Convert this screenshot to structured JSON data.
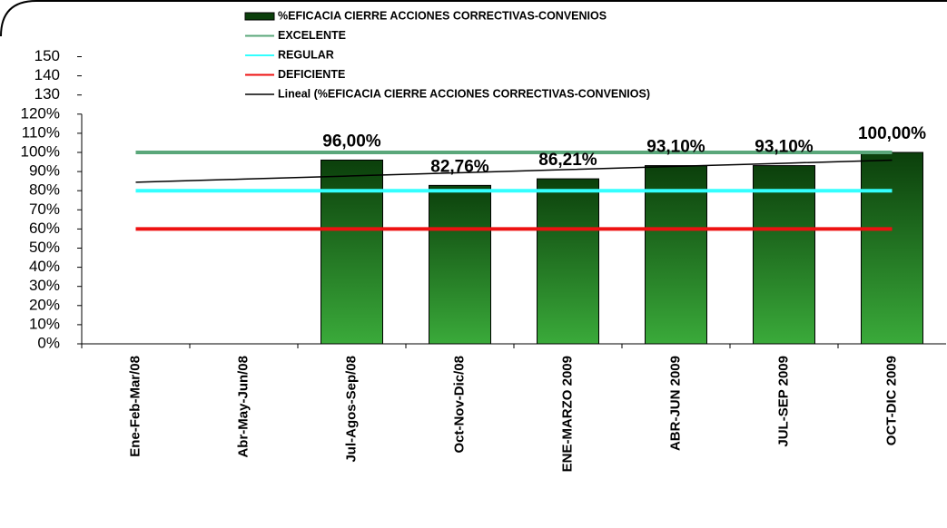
{
  "chart_data": {
    "type": "bar",
    "categories": [
      "Ene-Feb-Mar/08",
      "Abr-May-Jun/08",
      "Jul-Agos-Sep/08",
      "Oct-Nov-Dic/08",
      "ENE-MARZO 2009",
      "ABR-JUN 2009",
      "JUL-SEP 2009",
      "OCT-DIC 2009"
    ],
    "series": [
      {
        "name": "%EFICACIA CIERRE ACCIONES CORRECTIVAS-CONVENIOS",
        "type": "bar",
        "color": "#0b3f0b",
        "values": [
          null,
          null,
          96,
          82.76,
          86.21,
          93.1,
          93.1,
          100
        ],
        "value_labels": [
          null,
          null,
          "96,00%",
          "82,76%",
          "86,21%",
          "93,10%",
          "93,10%",
          "100,00%"
        ]
      },
      {
        "name": "EXCELENTE",
        "type": "line",
        "color": "#5aa77a",
        "values": [
          100,
          100,
          100,
          100,
          100,
          100,
          100,
          100
        ]
      },
      {
        "name": "REGULAR",
        "type": "line",
        "color": "#33ffff",
        "values": [
          80,
          80,
          80,
          80,
          80,
          80,
          80,
          80
        ]
      },
      {
        "name": "DEFICIENTE",
        "type": "line",
        "color": "#ee1111",
        "values": [
          60,
          60,
          60,
          60,
          60,
          60,
          60,
          60
        ]
      },
      {
        "name": "Lineal (%EFICACIA CIERRE ACCIONES CORRECTIVAS-CONVENIOS)",
        "type": "trend",
        "color": "#000000",
        "values": [
          84.4,
          86.06,
          87.71,
          89.37,
          91.03,
          92.69,
          94.34,
          96.0
        ]
      }
    ],
    "ylim": [
      0,
      150
    ],
    "yticks": [
      {
        "value": 0,
        "label": "0%"
      },
      {
        "value": 10,
        "label": "10%"
      },
      {
        "value": 20,
        "label": "20%"
      },
      {
        "value": 30,
        "label": "30%"
      },
      {
        "value": 40,
        "label": "40%"
      },
      {
        "value": 50,
        "label": "50%"
      },
      {
        "value": 60,
        "label": "60%"
      },
      {
        "value": 70,
        "label": "70%"
      },
      {
        "value": 80,
        "label": "80%"
      },
      {
        "value": 90,
        "label": "90%"
      },
      {
        "value": 100,
        "label": "100%"
      },
      {
        "value": 110,
        "label": "110%"
      },
      {
        "value": 120,
        "label": "120%"
      },
      130,
      140,
      150
    ],
    "legend": "top"
  }
}
